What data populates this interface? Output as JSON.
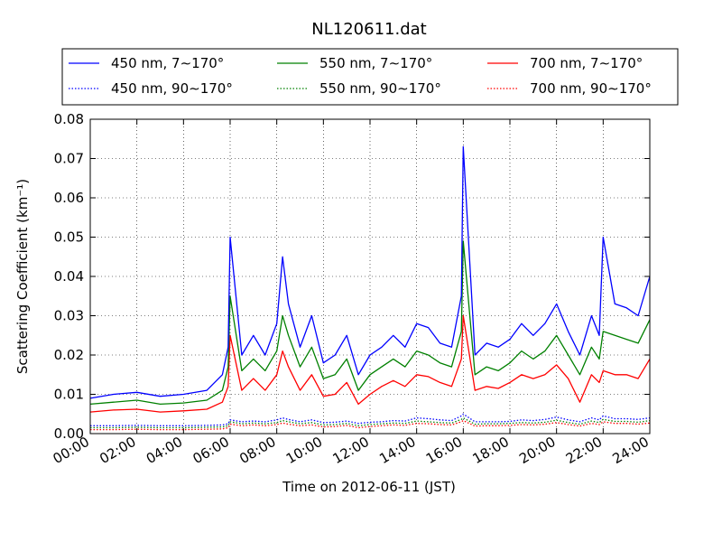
{
  "chart_data": {
    "type": "line",
    "title": "NL120611.dat",
    "xlabel": "Time on 2012-06-11 (JST)",
    "ylabel": "Scattering Coefficient (km⁻¹)",
    "xlim": [
      "00:00",
      "24:00"
    ],
    "ylim": [
      0,
      0.08
    ],
    "x_ticks": [
      "00:00",
      "02:00",
      "04:00",
      "06:00",
      "08:00",
      "10:00",
      "12:00",
      "14:00",
      "16:00",
      "18:00",
      "20:00",
      "22:00",
      "24:00"
    ],
    "y_ticks": [
      "0.00",
      "0.01",
      "0.02",
      "0.03",
      "0.04",
      "0.05",
      "0.06",
      "0.07",
      "0.08"
    ],
    "grid": true,
    "legend_position": "top",
    "x": [
      "00:00",
      "01:00",
      "02:00",
      "03:00",
      "04:00",
      "05:00",
      "05:40",
      "05:55",
      "06:00",
      "06:30",
      "07:00",
      "07:30",
      "08:00",
      "08:15",
      "08:30",
      "09:00",
      "09:30",
      "10:00",
      "10:30",
      "11:00",
      "11:30",
      "12:00",
      "12:30",
      "13:00",
      "13:30",
      "14:00",
      "14:30",
      "15:00",
      "15:30",
      "15:55",
      "16:00",
      "16:30",
      "17:00",
      "17:30",
      "18:00",
      "18:30",
      "19:00",
      "19:30",
      "20:00",
      "20:30",
      "21:00",
      "21:30",
      "21:50",
      "22:00",
      "22:30",
      "23:00",
      "23:30",
      "24:00"
    ],
    "series": [
      {
        "name": "450 nm, 7∼170°",
        "color": "#0000ff",
        "style": "solid",
        "values": [
          0.009,
          0.01,
          0.0105,
          0.0095,
          0.01,
          0.011,
          0.015,
          0.022,
          0.05,
          0.02,
          0.025,
          0.02,
          0.028,
          0.045,
          0.033,
          0.022,
          0.03,
          0.018,
          0.02,
          0.025,
          0.015,
          0.02,
          0.022,
          0.025,
          0.022,
          0.028,
          0.027,
          0.023,
          0.022,
          0.035,
          0.073,
          0.02,
          0.023,
          0.022,
          0.024,
          0.028,
          0.025,
          0.028,
          0.033,
          0.026,
          0.02,
          0.03,
          0.025,
          0.05,
          0.033,
          0.032,
          0.03,
          0.04
        ]
      },
      {
        "name": "550 nm, 7∼170°",
        "color": "#008000",
        "style": "solid",
        "values": [
          0.0075,
          0.008,
          0.0085,
          0.0075,
          0.0078,
          0.0085,
          0.011,
          0.017,
          0.035,
          0.016,
          0.019,
          0.016,
          0.021,
          0.03,
          0.025,
          0.017,
          0.022,
          0.014,
          0.015,
          0.019,
          0.011,
          0.015,
          0.017,
          0.019,
          0.017,
          0.021,
          0.02,
          0.018,
          0.017,
          0.026,
          0.049,
          0.015,
          0.017,
          0.016,
          0.018,
          0.021,
          0.019,
          0.021,
          0.025,
          0.02,
          0.015,
          0.022,
          0.019,
          0.026,
          0.025,
          0.024,
          0.023,
          0.029
        ]
      },
      {
        "name": "700 nm, 7∼170°",
        "color": "#ff0000",
        "style": "solid",
        "values": [
          0.0055,
          0.006,
          0.0062,
          0.0055,
          0.0058,
          0.0062,
          0.008,
          0.012,
          0.025,
          0.011,
          0.014,
          0.011,
          0.015,
          0.021,
          0.017,
          0.011,
          0.015,
          0.0095,
          0.01,
          0.013,
          0.0075,
          0.01,
          0.012,
          0.0135,
          0.012,
          0.015,
          0.0145,
          0.013,
          0.012,
          0.019,
          0.03,
          0.011,
          0.012,
          0.0115,
          0.013,
          0.015,
          0.014,
          0.015,
          0.0175,
          0.014,
          0.008,
          0.015,
          0.013,
          0.016,
          0.015,
          0.015,
          0.014,
          0.019
        ]
      },
      {
        "name": "450 nm, 90∼170°",
        "color": "#0000ff",
        "style": "dotted",
        "values": [
          0.002,
          0.002,
          0.0021,
          0.002,
          0.002,
          0.0021,
          0.0022,
          0.0025,
          0.0035,
          0.003,
          0.0032,
          0.003,
          0.0035,
          0.004,
          0.0036,
          0.003,
          0.0035,
          0.0028,
          0.0029,
          0.0032,
          0.0026,
          0.0029,
          0.003,
          0.0033,
          0.0032,
          0.004,
          0.0038,
          0.0035,
          0.0033,
          0.0045,
          0.005,
          0.003,
          0.003,
          0.003,
          0.0031,
          0.0035,
          0.0033,
          0.0036,
          0.0042,
          0.0035,
          0.003,
          0.004,
          0.0035,
          0.0045,
          0.0038,
          0.0038,
          0.0036,
          0.004
        ]
      },
      {
        "name": "550 nm, 90∼170°",
        "color": "#008000",
        "style": "dotted",
        "values": [
          0.0015,
          0.0015,
          0.0016,
          0.0015,
          0.0015,
          0.0016,
          0.0017,
          0.002,
          0.003,
          0.0025,
          0.0027,
          0.0025,
          0.0028,
          0.0033,
          0.003,
          0.0025,
          0.0028,
          0.0022,
          0.0023,
          0.0026,
          0.002,
          0.0023,
          0.0025,
          0.0027,
          0.0026,
          0.0032,
          0.003,
          0.0028,
          0.0027,
          0.0036,
          0.004,
          0.0024,
          0.0025,
          0.0025,
          0.0026,
          0.0028,
          0.0027,
          0.0029,
          0.0034,
          0.0028,
          0.0024,
          0.0032,
          0.0028,
          0.0036,
          0.0031,
          0.0031,
          0.0029,
          0.0033
        ]
      },
      {
        "name": "700 nm, 90∼170°",
        "color": "#ff0000",
        "style": "dotted",
        "values": [
          0.001,
          0.001,
          0.0011,
          0.001,
          0.001,
          0.0011,
          0.0012,
          0.0015,
          0.0024,
          0.002,
          0.0022,
          0.002,
          0.0023,
          0.0027,
          0.0024,
          0.002,
          0.0022,
          0.0017,
          0.0018,
          0.0021,
          0.0015,
          0.0018,
          0.002,
          0.0022,
          0.0021,
          0.0026,
          0.0025,
          0.0023,
          0.0022,
          0.003,
          0.0033,
          0.0019,
          0.002,
          0.002,
          0.0021,
          0.0023,
          0.0022,
          0.0024,
          0.0028,
          0.0023,
          0.0019,
          0.0026,
          0.0023,
          0.003,
          0.0026,
          0.0026,
          0.0024,
          0.0027
        ]
      }
    ]
  }
}
